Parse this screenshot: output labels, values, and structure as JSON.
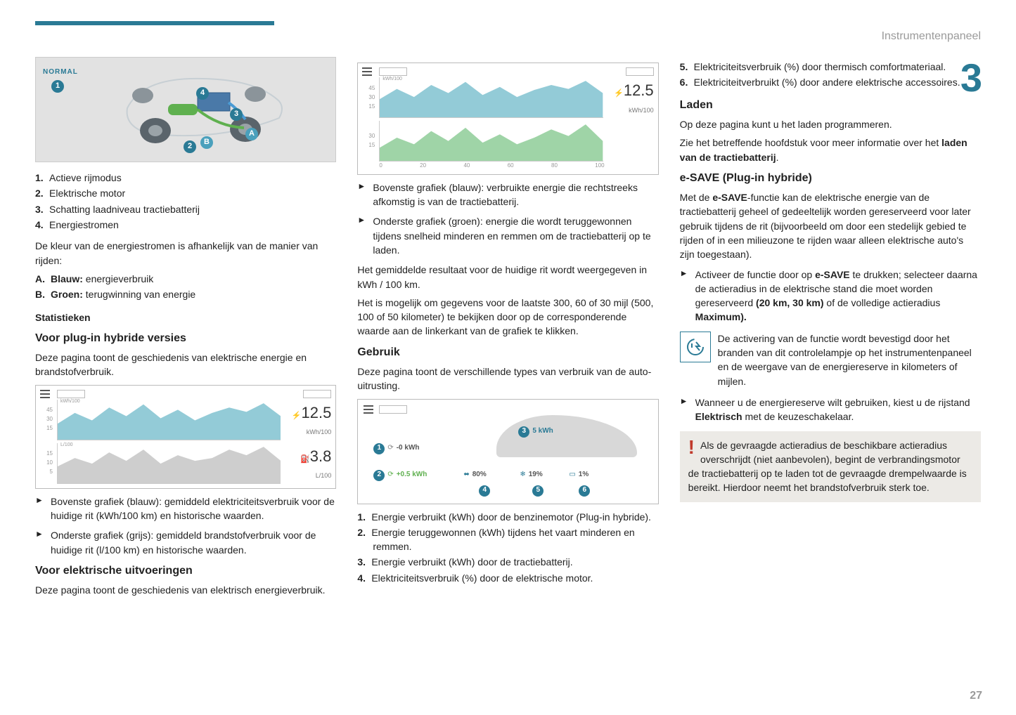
{
  "header": {
    "section_title": "Instrumentenpaneel",
    "section_number": "3",
    "page_number": "27"
  },
  "accent": "#2a7a95",
  "col1": {
    "diagram": {
      "label_normal": "NORMAL",
      "callouts_num": [
        "1",
        "2",
        "3",
        "4"
      ],
      "callouts_let": [
        "A",
        "B"
      ]
    },
    "list1": [
      {
        "n": "1.",
        "t": "Actieve rijmodus"
      },
      {
        "n": "2.",
        "t": "Elektrische motor"
      },
      {
        "n": "3.",
        "t": "Schatting laadniveau tractiebatterij"
      },
      {
        "n": "4.",
        "t": "Energiestromen"
      }
    ],
    "para_color": "De kleur van de energiestromen is afhankelijk van de manier van rijden:",
    "listAB": [
      {
        "n": "A.",
        "b": "Blauw:",
        "t": " energieverbruik"
      },
      {
        "n": "B.",
        "b": "Groen:",
        "t": " terugwinning van energie"
      }
    ],
    "h_stat": "Statistieken",
    "h_plugin": "Voor plug-in hybride versies",
    "p_plugin": "Deze pagina toont de geschiedenis van elektrische energie en brandstofverbruik.",
    "chart1": {
      "top_color": "#6fb9c9",
      "bottom_color": "#bdbdbd",
      "top_series": [
        15,
        25,
        18,
        30,
        22,
        33,
        20,
        28,
        18,
        25,
        30,
        26,
        34,
        22
      ],
      "bottom_series": [
        6,
        9,
        7,
        11,
        8,
        12,
        7,
        10,
        8,
        9,
        12,
        10,
        13,
        8
      ],
      "top_axis": [
        "45",
        "30",
        "15"
      ],
      "top_unit_label": "kWh/100",
      "bottom_axis": [
        "15",
        "10",
        "5"
      ],
      "bottom_unit_label": "L/100",
      "metric_top": {
        "value": "12.5",
        "unit": "kWh/100",
        "icon": "plug"
      },
      "metric_bottom": {
        "value": "3.8",
        "unit": "L/100",
        "icon": "pump"
      }
    },
    "arrows_plugin": [
      "Bovenste grafiek (blauw): gemiddeld elektriciteitsverbruik voor de huidige rit (kWh/100 km) en historische waarden.",
      "Onderste grafiek (grijs): gemiddeld brandstofverbruik voor de huidige rit (l/100 km) en historische waarden."
    ],
    "h_elec": "Voor elektrische uitvoeringen",
    "p_elec": "Deze pagina toont de geschiedenis van elektrisch energieverbruik."
  },
  "col2": {
    "chart2": {
      "top_color": "#6fb9c9",
      "bottom_color": "#7fc68a",
      "top_series": [
        18,
        28,
        20,
        32,
        24,
        35,
        22,
        30,
        20,
        27,
        32,
        28,
        36,
        24
      ],
      "bottom_series": [
        8,
        14,
        10,
        18,
        12,
        20,
        11,
        16,
        10,
        14,
        19,
        15,
        22,
        12
      ],
      "top_axis": [
        "45",
        "30",
        "15"
      ],
      "top_unit_label": "kWh/100",
      "x_ticks": [
        "0",
        "20",
        "40",
        "60",
        "80",
        "100"
      ],
      "bottom_axis": [
        "30",
        "15"
      ],
      "metric_top": {
        "value": "12.5",
        "unit": "kWh/100",
        "icon": "plug"
      }
    },
    "arrows_energy": [
      "Bovenste grafiek (blauw): verbruikte energie die rechtstreeks afkomstig is van de tractiebatterij.",
      "Onderste grafiek (groen): energie die wordt teruggewonnen tijdens snelheid minderen en remmen om de tractiebatterij op te laden."
    ],
    "p_avg": "Het gemiddelde resultaat voor de huidige rit wordt weergegeven in kWh / 100 km.",
    "p_range": "Het is mogelijk om gegevens voor de laatste 300, 60 of 30 mijl (500, 100 of 50 kilometer) te bekijken door op de corresponderende waarde aan de linkerkant van de grafiek te klikken.",
    "h_usage": "Gebruik",
    "p_usage": "Deze pagina toont de verschillende types van verbruik van de auto-uitrusting.",
    "usage_labels": {
      "l1": "-0 kWh",
      "l2": "+0.5 kWh",
      "l3": "5 kWh",
      "l4": "80%",
      "l5": "19%",
      "l6": "1%",
      "cn": [
        "1",
        "2",
        "3",
        "4",
        "5",
        "6"
      ]
    },
    "usage_list": [
      {
        "n": "1.",
        "t": "Energie verbruikt (kWh) door de benzinemotor (Plug-in hybride)."
      },
      {
        "n": "2.",
        "t": "Energie teruggewonnen (kWh) tijdens het vaart minderen en remmen."
      },
      {
        "n": "3.",
        "t": "Energie verbruikt (kWh) door de tractiebatterij."
      },
      {
        "n": "4.",
        "t": "Elektriciteitsverbruik (%) door de elektrische motor."
      }
    ]
  },
  "col3": {
    "usage_list_cont": [
      {
        "n": "5.",
        "t": "Elektriciteitsverbruik (%) door thermisch comfortmateriaal."
      },
      {
        "n": "6.",
        "t": "Elektriciteitverbruikt (%) door andere elektrische accessoires."
      }
    ],
    "h_laden": "Laden",
    "p_laden1": "Op deze pagina kunt u het laden programmeren.",
    "p_laden2_a": "Zie het betreffende hoofdstuk voor meer informatie over het ",
    "p_laden2_b": "laden van de tractiebatterij",
    "h_esave": "e-SAVE (Plug-in hybride)",
    "p_esave_a": "Met de ",
    "p_esave_b": "e-SAVE",
    "p_esave_c": "-functie kan de elektrische energie van de tractiebatterij geheel of gedeeltelijk worden gereserveerd voor later gebruik tijdens de rit (bijvoorbeeld om door een stedelijk gebied te rijden of in een milieuzone te rijden waar alleen elektrische auto's zijn toegestaan).",
    "arrow_activate_a": "Activeer de functie door op ",
    "arrow_activate_b": "e-SAVE",
    "arrow_activate_c": " te drukken; selecteer daarna de actieradius in de elektrische stand die moet worden gereserveerd ",
    "arrow_activate_d": "(20 km, 30 km)",
    "arrow_activate_e": " of de volledige actieradius ",
    "arrow_activate_f": "Maximum).",
    "note_icon_text": "De activering van de functie wordt bevestigd door het branden van dit controlelampje op het instrumenten­paneel en de weergave van de ener­giereserve in kilometers of mijlen.",
    "arrow_use_a": "Wanneer u de energiereserve wilt gebruiken, kiest u de rijstand ",
    "arrow_use_b": "Elektrisch",
    "arrow_use_c": " met de keuzeschakelaar.",
    "warning": "Als de gevraagde actieradius de beschikbare actieradius overschrijdt (niet aanbevolen), begint de verbrandingsmotor de tractiebatterij op te laden tot de gevraagde drempelwaarde is bereikt. Hierdoor neemt het brandstofverbruik sterk toe."
  }
}
